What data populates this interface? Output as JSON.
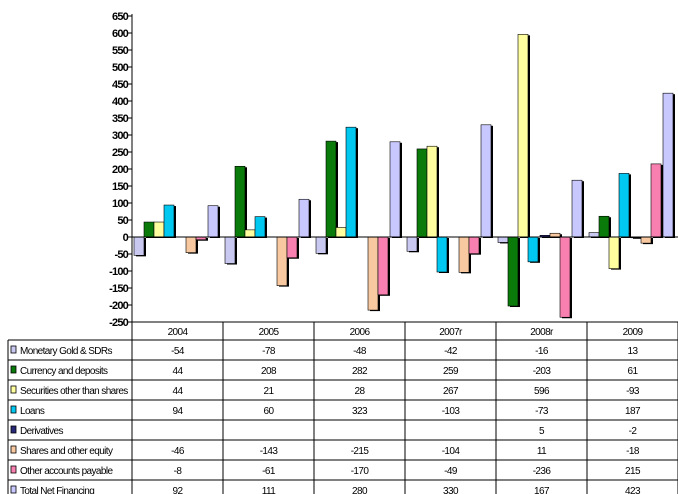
{
  "chart_data": {
    "type": "bar",
    "categories": [
      "2004",
      "2005",
      "2006",
      "2007r",
      "2008r",
      "2009"
    ],
    "ylim": [
      -250,
      650
    ],
    "yticks": [
      650,
      600,
      550,
      500,
      450,
      400,
      350,
      300,
      250,
      200,
      150,
      100,
      50,
      0,
      -50,
      -100,
      -150,
      -200,
      -250
    ],
    "grid": false,
    "legend": "data-table-left",
    "series": [
      {
        "name": "Monetary Gold & SDRs",
        "color": "#c8c8f0",
        "values": [
          -54,
          -78,
          -48,
          -42,
          -16,
          13
        ],
        "labels": [
          "-54",
          "-78",
          "-48",
          "-42",
          "-16",
          "13"
        ]
      },
      {
        "name": "Currency and deposits",
        "color": "#0a7a0a",
        "values": [
          44,
          208,
          282,
          259,
          -203,
          61
        ],
        "labels": [
          "44",
          "208",
          "282",
          "259",
          "-203",
          "61"
        ]
      },
      {
        "name": "Securities other than shares",
        "color": "#ffffa0",
        "values": [
          44,
          21,
          28,
          267,
          596,
          -93
        ],
        "labels": [
          "44",
          "21",
          "28",
          "267",
          "596",
          "-93"
        ]
      },
      {
        "name": "Loans",
        "color": "#00c8f0",
        "values": [
          94,
          60,
          323,
          -103,
          -73,
          187
        ],
        "labels": [
          "94",
          "60",
          "323",
          "-103",
          "-73",
          "187"
        ]
      },
      {
        "name": "Derivatives",
        "color": "#282878",
        "values": [
          null,
          null,
          null,
          null,
          5,
          -2
        ],
        "labels": [
          "",
          "",
          "",
          "",
          "5",
          "-2"
        ]
      },
      {
        "name": "Shares and other equity",
        "color": "#f8c8a0",
        "values": [
          -46,
          -143,
          -215,
          -104,
          11,
          -18
        ],
        "labels": [
          "-46",
          "-143",
          "-215",
          "-104",
          "11",
          "-18"
        ]
      },
      {
        "name": "Other accounts payable",
        "color": "#f880b0",
        "values": [
          -8,
          -61,
          -170,
          -49,
          -236,
          215
        ],
        "labels": [
          "-8",
          "-61",
          "-170",
          "-49",
          "-236",
          "215"
        ]
      },
      {
        "name": "Total Net Financing",
        "color": "#c8c8ff",
        "values": [
          92,
          111,
          280,
          330,
          167,
          423
        ],
        "labels": [
          "92",
          "111",
          "280",
          "330",
          "167",
          "423"
        ]
      }
    ]
  }
}
